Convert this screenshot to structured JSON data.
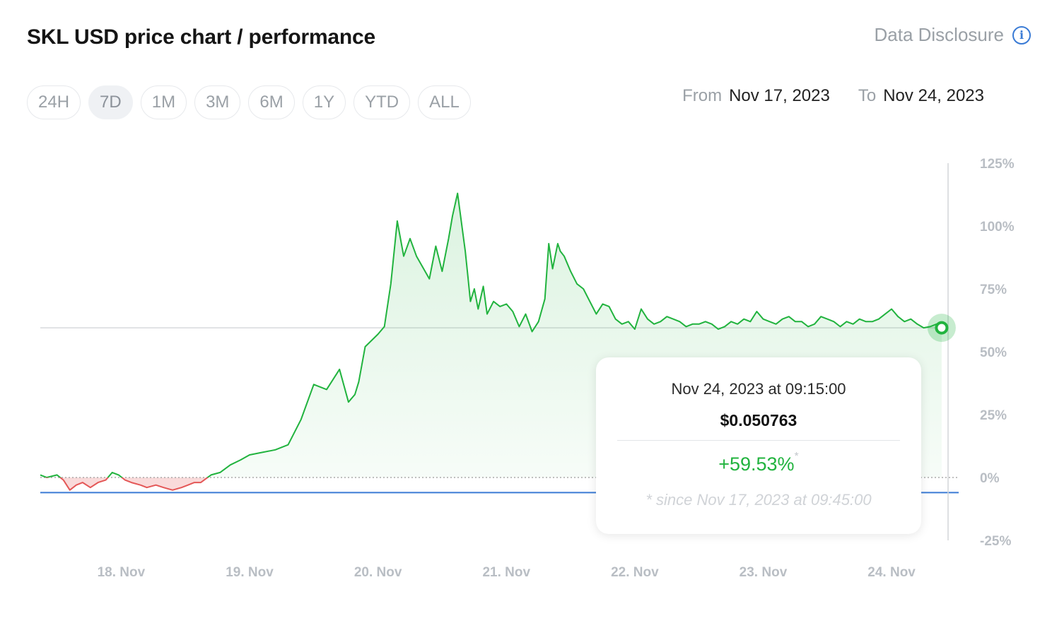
{
  "header": {
    "title": "SKL USD price chart / performance",
    "disclosure_label": "Data Disclosure",
    "info_icon": "info-icon"
  },
  "ranges": [
    {
      "label": "24H",
      "active": false
    },
    {
      "label": "7D",
      "active": true
    },
    {
      "label": "1M",
      "active": false
    },
    {
      "label": "3M",
      "active": false
    },
    {
      "label": "6M",
      "active": false
    },
    {
      "label": "1Y",
      "active": false
    },
    {
      "label": "YTD",
      "active": false
    },
    {
      "label": "ALL",
      "active": false
    }
  ],
  "date_range": {
    "from_label": "From",
    "from_value": "Nov 17, 2023",
    "to_label": "To",
    "to_value": "Nov 24, 2023"
  },
  "tooltip": {
    "datetime": "Nov 24, 2023 at 09:15:00",
    "price": "$0.050763",
    "change": "+59.53%",
    "change_marker": "*",
    "since": "* since Nov 17, 2023 at 09:45:00"
  },
  "colors": {
    "positive": "#21b33e",
    "negative": "#e45757",
    "baseline_blue": "#3a7bd5",
    "axis_text": "#b9bec4"
  },
  "chart_data": {
    "type": "area",
    "x_ticks": [
      "18. Nov",
      "19. Nov",
      "20. Nov",
      "21. Nov",
      "22. Nov",
      "23. Nov",
      "24. Nov"
    ],
    "y_ticks": [
      "125%",
      "100%",
      "75%",
      "50%",
      "25%",
      "0%",
      "-25%"
    ],
    "y_unit": "%",
    "ylim": [
      -25,
      125
    ],
    "xlim": [
      17.37,
      24.44
    ],
    "baseline_value": 0,
    "min_line_value": -6,
    "current_line_value": 59.53,
    "series": [
      {
        "x": [
          17.37,
          17.42,
          17.5,
          17.55,
          17.6,
          17.65,
          17.7,
          17.76,
          17.82,
          17.88,
          17.93,
          17.98,
          18.03,
          18.08,
          18.15,
          18.2,
          18.27,
          18.33,
          18.4,
          18.47,
          18.52,
          18.57,
          18.62,
          18.7,
          18.77,
          18.85,
          18.93,
          19.0,
          19.1,
          19.2,
          19.3,
          19.4,
          19.5,
          19.6,
          19.7,
          19.77,
          19.82,
          19.85,
          19.9,
          20.0,
          20.05,
          20.1,
          20.15,
          20.2,
          20.25,
          20.3,
          20.4,
          20.45,
          20.5,
          20.55,
          20.58,
          20.62,
          20.68,
          20.7,
          20.72,
          20.75,
          20.78,
          20.82,
          20.85,
          20.9,
          20.95,
          21.0,
          21.05,
          21.1,
          21.15,
          21.2,
          21.25,
          21.3,
          21.33,
          21.36,
          21.4,
          21.42,
          21.45,
          21.5,
          21.55,
          21.6,
          21.65,
          21.7,
          21.75,
          21.8,
          21.85,
          21.9,
          21.95,
          22.0,
          22.05,
          22.1,
          22.15,
          22.2,
          22.25,
          22.3,
          22.35,
          22.4,
          22.45,
          22.5,
          22.55,
          22.6,
          22.65,
          22.7,
          22.75,
          22.8,
          22.85,
          22.9,
          22.95,
          23.0,
          23.05,
          23.1,
          23.15,
          23.2,
          23.25,
          23.3,
          23.35,
          23.4,
          23.45,
          23.5,
          23.55,
          23.6,
          23.65,
          23.7,
          23.75,
          23.8,
          23.85,
          23.9,
          23.95,
          24.0,
          24.05,
          24.1,
          24.15,
          24.2,
          24.25,
          24.3,
          24.35,
          24.39
        ],
        "values": [
          1,
          0,
          1,
          -1,
          -5,
          -3,
          -2,
          -4,
          -2,
          -1,
          2,
          1,
          -1,
          -2,
          -3,
          -4,
          -3,
          -4,
          -5,
          -4,
          -3,
          -2,
          -2,
          1,
          2,
          5,
          7,
          9,
          10,
          11,
          13,
          23,
          37,
          35,
          43,
          30,
          33,
          38,
          52,
          57,
          60,
          77,
          102,
          88,
          95,
          88,
          79,
          92,
          82,
          95,
          104,
          113,
          90,
          80,
          70,
          75,
          67,
          76,
          65,
          70,
          68,
          69,
          66,
          60,
          65,
          58,
          62,
          71,
          93,
          83,
          93,
          90,
          88,
          82,
          77,
          75,
          70,
          65,
          69,
          68,
          63,
          61,
          62,
          59,
          67,
          63,
          61,
          62,
          64,
          63,
          62,
          60,
          61,
          61,
          62,
          61,
          59,
          60,
          62,
          61,
          63,
          62,
          66,
          63,
          62,
          61,
          63,
          64,
          62,
          62,
          60,
          61,
          64,
          63,
          62,
          60,
          62,
          61,
          63,
          62,
          62,
          63,
          65,
          67,
          64,
          62,
          63,
          61,
          59.53,
          60,
          61,
          59.53
        ]
      }
    ]
  }
}
